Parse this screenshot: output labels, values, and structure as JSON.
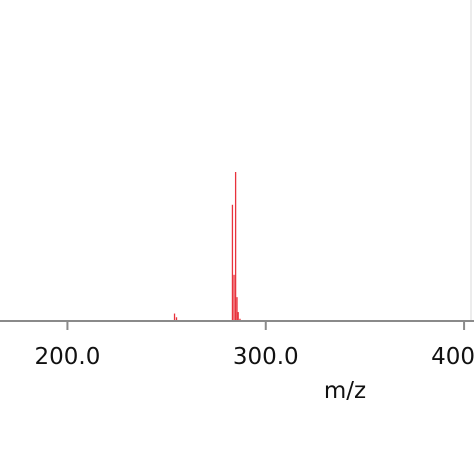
{
  "chart_data": {
    "type": "bar",
    "xlabel": "m/z",
    "ylabel": "",
    "title": "",
    "xlim": [
      166,
      405
    ],
    "ylim": [
      0,
      100
    ],
    "x_ticks": [
      {
        "value": 200,
        "label": "200.0"
      },
      {
        "value": 300,
        "label": "300.0"
      },
      {
        "value": 400,
        "label": "400.0"
      }
    ],
    "series": [
      {
        "color": "#e8323c",
        "peaks": [
          {
            "x": 211.5,
            "y": 0.6
          },
          {
            "x": 225.0,
            "y": 0.5
          },
          {
            "x": 235.5,
            "y": 0.5
          },
          {
            "x": 254.0,
            "y": 5.0
          },
          {
            "x": 255.0,
            "y": 2.5
          },
          {
            "x": 283.2,
            "y": 78.0
          },
          {
            "x": 284.0,
            "y": 31.0
          },
          {
            "x": 284.8,
            "y": 100.0
          },
          {
            "x": 285.5,
            "y": 16.0
          },
          {
            "x": 286.1,
            "y": 6.0
          },
          {
            "x": 287.0,
            "y": 1.5
          },
          {
            "x": 326.0,
            "y": 0.5
          },
          {
            "x": 337.0,
            "y": 0.5
          }
        ]
      }
    ],
    "colors": {
      "axis": "#8a8a8a",
      "frame": "#d8d8d8",
      "text": "#111111"
    }
  }
}
